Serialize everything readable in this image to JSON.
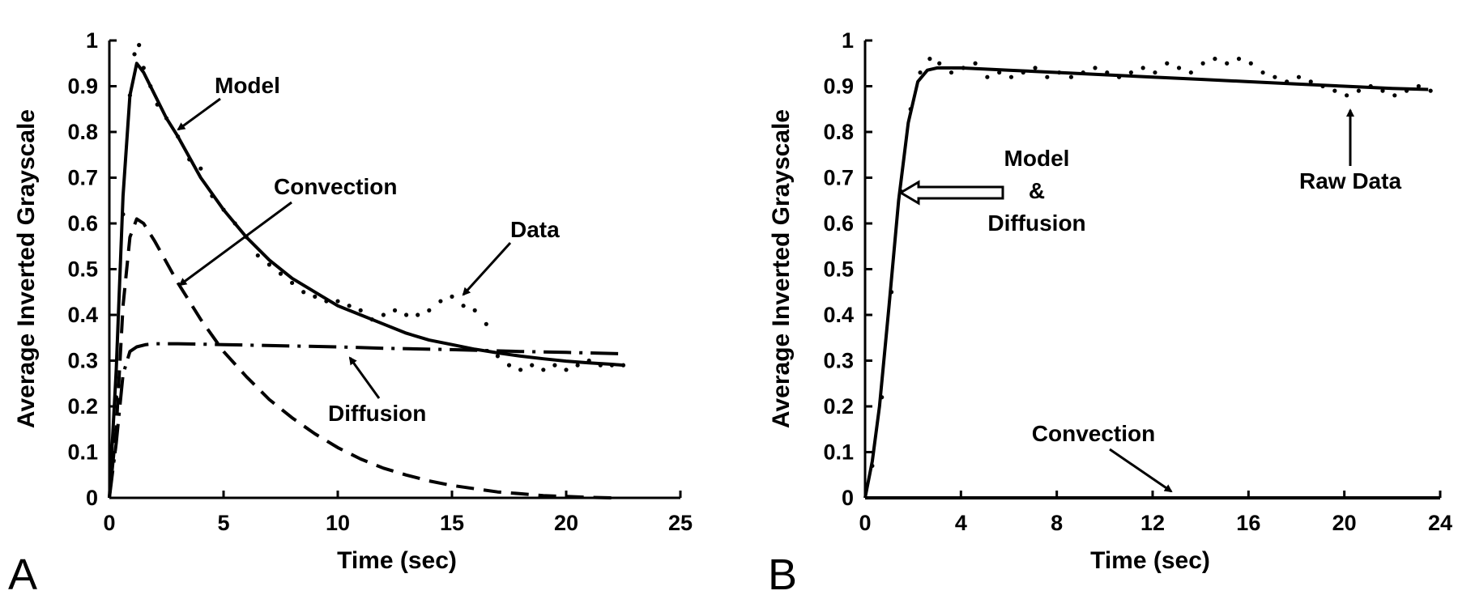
{
  "chart_data": [
    {
      "type": "line",
      "panel_label": "A",
      "xlabel": "Time (sec)",
      "ylabel": "Average Inverted Grayscale",
      "xlim": [
        0,
        25
      ],
      "ylim": [
        0,
        1
      ],
      "x_ticks": [
        "0",
        "5",
        "10",
        "15",
        "20",
        "25"
      ],
      "y_ticks": [
        "0",
        "0.1",
        "0.2",
        "0.3",
        "0.4",
        "0.5",
        "0.6",
        "0.7",
        "0.8",
        "0.9",
        "1"
      ],
      "grid": false,
      "series": [
        {
          "name": "Model",
          "style": "solid",
          "x": [
            0,
            0.3,
            0.6,
            0.9,
            1.2,
            1.5,
            2,
            2.5,
            3,
            4,
            5,
            6,
            7,
            8,
            9,
            10,
            11,
            12,
            13,
            14,
            15,
            16,
            17,
            18,
            19,
            20,
            21,
            22,
            22.5
          ],
          "y": [
            0,
            0.28,
            0.66,
            0.88,
            0.95,
            0.93,
            0.88,
            0.83,
            0.79,
            0.7,
            0.63,
            0.57,
            0.52,
            0.48,
            0.45,
            0.42,
            0.4,
            0.38,
            0.36,
            0.345,
            0.335,
            0.325,
            0.317,
            0.31,
            0.304,
            0.299,
            0.295,
            0.292,
            0.29
          ]
        },
        {
          "name": "Convection",
          "style": "dashed",
          "x": [
            0,
            0.3,
            0.6,
            0.9,
            1.2,
            1.5,
            2,
            3,
            4,
            5,
            6,
            7,
            8,
            9,
            10,
            11,
            12,
            13,
            14,
            15,
            16,
            17,
            18,
            19,
            20,
            21,
            22
          ],
          "y": [
            0,
            0.15,
            0.42,
            0.57,
            0.61,
            0.6,
            0.56,
            0.47,
            0.39,
            0.32,
            0.265,
            0.215,
            0.175,
            0.14,
            0.11,
            0.085,
            0.065,
            0.05,
            0.037,
            0.027,
            0.02,
            0.013,
            0.009,
            0.005,
            0.003,
            0.001,
            0
          ]
        },
        {
          "name": "Diffusion",
          "style": "dash-dot",
          "x": [
            0,
            0.3,
            0.6,
            0.9,
            1.2,
            1.6,
            2,
            3,
            5,
            8,
            10,
            12,
            15,
            18,
            20,
            22.5
          ],
          "y": [
            0,
            0.12,
            0.27,
            0.32,
            0.33,
            0.335,
            0.337,
            0.337,
            0.335,
            0.332,
            0.33,
            0.327,
            0.324,
            0.32,
            0.318,
            0.315
          ]
        },
        {
          "name": "Data",
          "style": "dots",
          "x": [
            0.3,
            0.6,
            0.9,
            1.1,
            1.3,
            1.5,
            1.8,
            2.1,
            2.5,
            3,
            3.5,
            4,
            4.5,
            5,
            5.5,
            6,
            6.5,
            7,
            7.5,
            8,
            8.5,
            9,
            9.5,
            10,
            10.5,
            11,
            11.5,
            12,
            12.5,
            13,
            13.5,
            14,
            14.5,
            15,
            15.5,
            16,
            16.5,
            17,
            17.5,
            18,
            18.5,
            19,
            19.5,
            20,
            20.5,
            21,
            21.5,
            22,
            22.5
          ],
          "y": [
            0.22,
            0.62,
            0.88,
            0.97,
            0.99,
            0.94,
            0.9,
            0.86,
            0.83,
            0.79,
            0.74,
            0.72,
            0.66,
            0.63,
            0.6,
            0.57,
            0.53,
            0.51,
            0.49,
            0.47,
            0.45,
            0.44,
            0.43,
            0.43,
            0.42,
            0.41,
            0.39,
            0.4,
            0.41,
            0.4,
            0.4,
            0.41,
            0.43,
            0.44,
            0.42,
            0.41,
            0.38,
            0.31,
            0.29,
            0.28,
            0.29,
            0.28,
            0.29,
            0.28,
            0.29,
            0.3,
            0.29,
            0.29,
            0.29
          ]
        }
      ],
      "annotations": [
        "Model",
        "Convection",
        "Data",
        "Diffusion"
      ]
    },
    {
      "type": "line",
      "panel_label": "B",
      "xlabel": "Time (sec)",
      "ylabel": "Average Inverted Grayscale",
      "xlim": [
        0,
        24
      ],
      "ylim": [
        0,
        1
      ],
      "x_ticks": [
        "0",
        "4",
        "8",
        "12",
        "16",
        "20",
        "24"
      ],
      "y_ticks": [
        "0",
        "0.1",
        "0.2",
        "0.3",
        "0.4",
        "0.5",
        "0.6",
        "0.7",
        "0.8",
        "0.9",
        "1"
      ],
      "grid": false,
      "series": [
        {
          "name": "Model & Diffusion",
          "style": "solid",
          "x": [
            0,
            0.3,
            0.6,
            1,
            1.4,
            1.8,
            2.2,
            2.6,
            3,
            4,
            6,
            8,
            10,
            12,
            14,
            16,
            18,
            20,
            22,
            23.5
          ],
          "y": [
            0,
            0.08,
            0.2,
            0.42,
            0.65,
            0.82,
            0.91,
            0.935,
            0.94,
            0.94,
            0.935,
            0.93,
            0.925,
            0.92,
            0.915,
            0.91,
            0.905,
            0.9,
            0.895,
            0.893
          ]
        },
        {
          "name": "Convection",
          "style": "solid",
          "x": [
            0,
            24
          ],
          "y": [
            0,
            0
          ]
        },
        {
          "name": "Raw Data",
          "style": "dots",
          "x": [
            0.3,
            0.7,
            1.1,
            1.5,
            1.9,
            2.3,
            2.7,
            3.1,
            3.6,
            4.1,
            4.6,
            5.1,
            5.6,
            6.1,
            6.6,
            7.1,
            7.6,
            8.1,
            8.6,
            9.1,
            9.6,
            10.1,
            10.6,
            11.1,
            11.6,
            12.1,
            12.6,
            13.1,
            13.6,
            14.1,
            14.6,
            15.1,
            15.6,
            16.1,
            16.6,
            17.1,
            17.6,
            18.1,
            18.6,
            19.1,
            19.6,
            20.1,
            20.6,
            21.1,
            21.6,
            22.1,
            22.6,
            23.1,
            23.6
          ],
          "y": [
            0.07,
            0.22,
            0.45,
            0.67,
            0.85,
            0.93,
            0.96,
            0.95,
            0.93,
            0.94,
            0.95,
            0.92,
            0.93,
            0.92,
            0.93,
            0.94,
            0.92,
            0.93,
            0.92,
            0.93,
            0.94,
            0.93,
            0.92,
            0.93,
            0.94,
            0.93,
            0.95,
            0.94,
            0.93,
            0.95,
            0.96,
            0.95,
            0.96,
            0.95,
            0.93,
            0.92,
            0.91,
            0.92,
            0.91,
            0.9,
            0.89,
            0.88,
            0.89,
            0.9,
            0.89,
            0.88,
            0.89,
            0.9,
            0.89
          ]
        }
      ],
      "annotations": [
        "Model",
        "&",
        "Diffusion",
        "Raw Data",
        "Convection"
      ]
    }
  ]
}
